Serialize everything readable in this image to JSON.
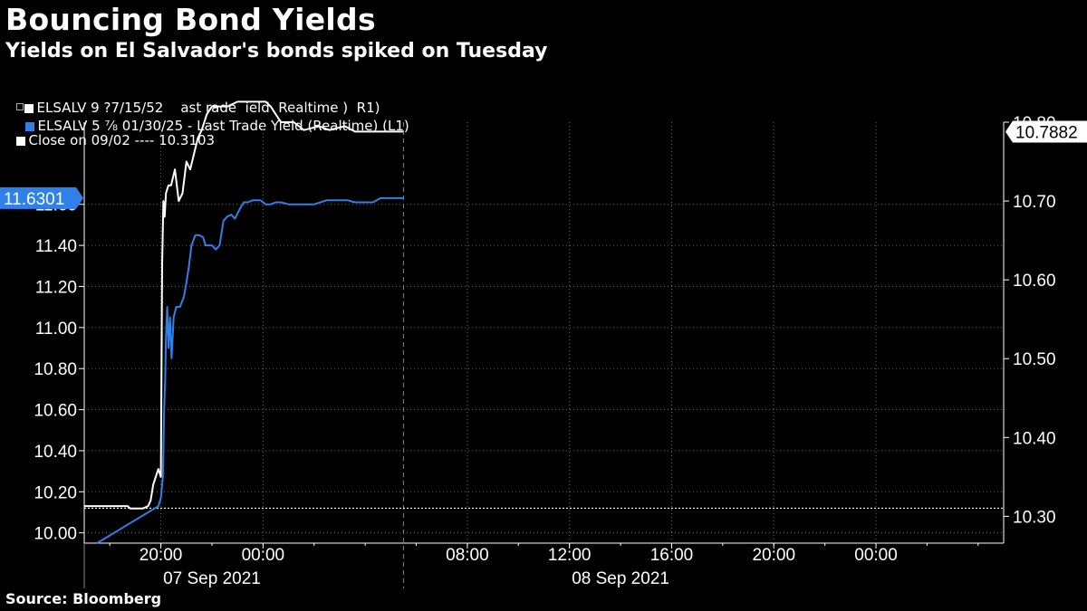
{
  "title": "Bouncing Bond Yields",
  "subtitle": "Yields on El Salvador's bonds spiked on Tuesday",
  "source": "Source: Bloomberg",
  "legend": [
    {
      "label": "ELSALV 9 ?7/15/52    ast rade  ield  Realtime )  R1)",
      "color": "#ffffff"
    },
    {
      "label": "Close on 09/02 ---- 10.3103",
      "color": "#ffffff"
    },
    {
      "label": "ELSALV 5 ⅞ 01/30/25 - Last Trade Yield (Realtime) (L1)",
      "color": "#2f80e8"
    }
  ],
  "colors": {
    "blue": "#2f80e8",
    "white": "#ffffff",
    "grid": "#666666",
    "background": "#000000"
  },
  "chart_data": {
    "type": "line",
    "title": "Bouncing Bond Yields",
    "x_tick_labels": [
      "20:00",
      "00:00",
      "08:00",
      "12:00",
      "16:00",
      "20:00",
      "00:00"
    ],
    "x_tick_hours": [
      20,
      24,
      32,
      36,
      40,
      44,
      48
    ],
    "x_date_labels": [
      {
        "label": "07 Sep 2021",
        "hour": 22
      },
      {
        "label": "08 Sep 2021",
        "hour": 38
      }
    ],
    "xlim_hours": [
      17,
      53
    ],
    "session_break_hour": 29.5,
    "left_axis": {
      "ylim": [
        9.95,
        12.0
      ],
      "ticks": [
        "10.00",
        "10.20",
        "10.40",
        "10.60",
        "10.80",
        "11.00",
        "11.20",
        "11.40",
        "11.60"
      ]
    },
    "right_axis": {
      "ylim": [
        10.266,
        10.8
      ],
      "ticks": [
        "10.30",
        "10.40",
        "10.50",
        "10.60",
        "10.70",
        "10.80"
      ]
    },
    "last_value_left": "11.6301",
    "last_value_right": "10.7882",
    "close_reference": {
      "label": "Close on 09/02",
      "value": 10.3103,
      "axis": "right"
    },
    "series": [
      {
        "name": "ELSALV 5 ⅞ 01/30/25 - Last Trade Yield (Realtime) (L1)",
        "axis": "left",
        "color": "#2f80e8",
        "x": [
          17.5,
          19.9,
          20.0,
          20.08,
          20.13,
          20.17,
          20.2,
          20.25,
          20.3,
          20.36,
          20.42,
          20.5,
          20.6,
          20.75,
          20.9,
          21.0,
          21.1,
          21.2,
          21.35,
          21.5,
          21.65,
          21.75,
          21.85,
          22.0,
          22.15,
          22.3,
          22.45,
          22.6,
          22.75,
          22.9,
          23.1,
          23.25,
          23.4,
          23.6,
          23.75,
          23.9,
          24.1,
          24.3,
          24.5,
          24.7,
          25.0,
          25.5,
          26.0,
          26.5,
          26.7,
          27.3,
          27.6,
          28.3,
          28.6,
          29.2,
          29.5
        ],
        "values": [
          9.95,
          10.13,
          10.17,
          10.27,
          10.6,
          10.75,
          10.95,
          11.1,
          10.9,
          11.05,
          10.85,
          11.05,
          11.1,
          11.1,
          11.15,
          11.22,
          11.3,
          11.4,
          11.45,
          11.45,
          11.44,
          11.4,
          11.4,
          11.4,
          11.38,
          11.4,
          11.52,
          11.54,
          11.55,
          11.53,
          11.58,
          11.61,
          11.61,
          11.62,
          11.62,
          11.62,
          11.6,
          11.6,
          11.61,
          11.61,
          11.6,
          11.6,
          11.6,
          11.62,
          11.62,
          11.62,
          11.61,
          11.61,
          11.63,
          11.63,
          11.63
        ]
      },
      {
        "name": "ELSALV 9 ?7/15/52    ast rade  ield  Realtime )  R1)",
        "axis": "right",
        "color": "#ffffff",
        "x": [
          17.0,
          18.7,
          18.8,
          19.3,
          19.5,
          19.6,
          19.7,
          19.9,
          20.0,
          20.05,
          20.1,
          20.15,
          20.2,
          20.3,
          20.4,
          20.55,
          20.7,
          20.85,
          21.0,
          21.15,
          21.3,
          21.45,
          21.6,
          21.8,
          22.0,
          22.3,
          22.6,
          23.0,
          23.4,
          23.8,
          24.1,
          24.3,
          24.7,
          25.2,
          25.6,
          26.2,
          26.6,
          27.2,
          27.6,
          28.0,
          28.6,
          29.2,
          29.5
        ],
        "values": [
          10.313,
          10.313,
          10.31,
          10.31,
          10.313,
          10.32,
          10.34,
          10.36,
          10.35,
          10.62,
          10.7,
          10.68,
          10.71,
          10.72,
          10.72,
          10.74,
          10.7,
          10.71,
          10.75,
          10.74,
          10.76,
          10.78,
          10.79,
          10.81,
          10.82,
          10.82,
          10.82,
          10.826,
          10.826,
          10.826,
          10.826,
          10.82,
          10.8,
          10.8,
          10.79,
          10.795,
          10.79,
          10.795,
          10.788,
          10.788,
          10.788,
          10.788,
          10.788
        ]
      }
    ],
    "grid": true
  }
}
